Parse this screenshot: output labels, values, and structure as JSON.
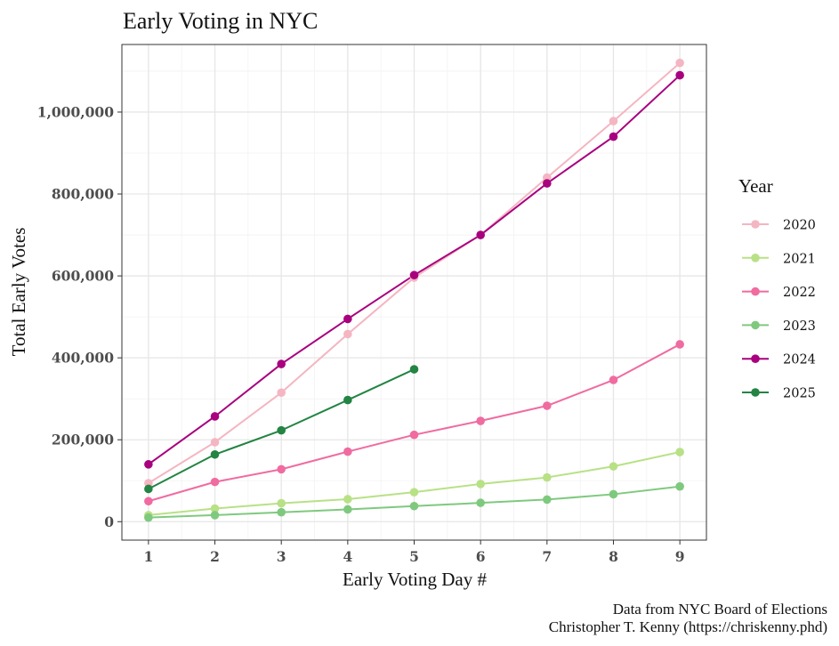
{
  "chart_data": {
    "type": "line",
    "title": "Early Voting in NYC",
    "xlabel": "Early Voting Day #",
    "ylabel": "Total Early Votes",
    "x": [
      1,
      2,
      3,
      4,
      5,
      6,
      7,
      8,
      9
    ],
    "xlim": [
      0.6,
      9.4
    ],
    "ylim": [
      -45000,
      1165000
    ],
    "xticks": [
      "1",
      "2",
      "3",
      "4",
      "5",
      "6",
      "7",
      "8",
      "9"
    ],
    "yticks": [
      0,
      200000,
      400000,
      600000,
      800000,
      1000000
    ],
    "ytick_labels": [
      "0",
      "200,000",
      "400,000",
      "600,000",
      "800,000",
      "1,000,000"
    ],
    "grid": true,
    "legend": {
      "title": "Year",
      "position": "right"
    },
    "series": [
      {
        "name": "2020",
        "color": "#f4b6c2",
        "x": [
          1,
          2,
          3,
          4,
          5,
          6,
          7,
          8,
          9
        ],
        "values": [
          94000,
          194000,
          315000,
          458000,
          596000,
          700000,
          840000,
          978000,
          1120000
        ]
      },
      {
        "name": "2021",
        "color": "#b8e186",
        "x": [
          1,
          2,
          3,
          4,
          5,
          6,
          7,
          8,
          9
        ],
        "values": [
          16000,
          32000,
          45000,
          55000,
          72000,
          92000,
          108000,
          135000,
          170000
        ]
      },
      {
        "name": "2022",
        "color": "#f06ba0",
        "x": [
          1,
          2,
          3,
          4,
          5,
          6,
          7,
          8,
          9
        ],
        "values": [
          50000,
          97000,
          128000,
          171000,
          212000,
          246000,
          283000,
          346000,
          433000
        ]
      },
      {
        "name": "2023",
        "color": "#7fc97f",
        "x": [
          1,
          2,
          3,
          4,
          5,
          6,
          7,
          8,
          9
        ],
        "values": [
          10000,
          16000,
          23000,
          30000,
          38000,
          46000,
          54000,
          67000,
          86000
        ]
      },
      {
        "name": "2024",
        "color": "#a8007f",
        "x": [
          1,
          2,
          3,
          4,
          5,
          6,
          7,
          8,
          9
        ],
        "values": [
          140000,
          257000,
          385000,
          495000,
          602000,
          700000,
          826000,
          940000,
          1090000
        ]
      },
      {
        "name": "2025",
        "color": "#238443",
        "x": [
          1,
          2,
          3,
          4,
          5
        ],
        "values": [
          80000,
          164000,
          223000,
          297000,
          372000
        ]
      }
    ]
  },
  "caption": {
    "line1": "Data from NYC Board of Elections",
    "line2": "Christopher T. Kenny (https://chriskenny.phd)"
  }
}
